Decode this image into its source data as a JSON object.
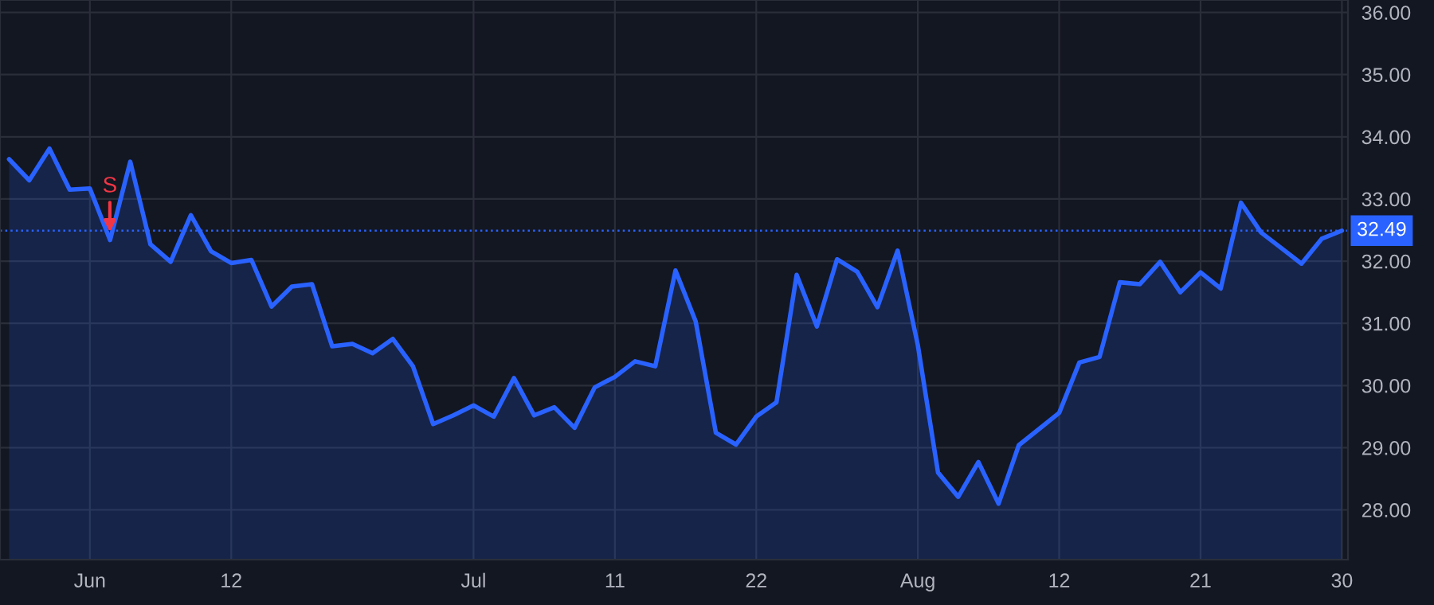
{
  "chart_data": {
    "type": "area",
    "categories": [
      null,
      null,
      null,
      null,
      "Jun",
      null,
      null,
      null,
      null,
      null,
      null,
      "12",
      null,
      null,
      null,
      null,
      null,
      null,
      null,
      null,
      null,
      null,
      null,
      "Jul",
      null,
      null,
      null,
      null,
      null,
      null,
      "11",
      null,
      null,
      null,
      null,
      null,
      null,
      "22",
      null,
      null,
      null,
      null,
      null,
      null,
      null,
      "Aug",
      null,
      null,
      null,
      null,
      null,
      null,
      "12",
      null,
      null,
      null,
      null,
      null,
      null,
      "21",
      null,
      null,
      null,
      null,
      null,
      null,
      "30"
    ],
    "series": [
      {
        "color": "#2962ff",
        "values": [
          33.64,
          33.3,
          33.81,
          33.15,
          33.17,
          32.34,
          33.6,
          32.27,
          31.99,
          32.74,
          32.16,
          31.97,
          32.02,
          31.27,
          31.59,
          31.63,
          30.63,
          30.67,
          30.52,
          30.75,
          30.31,
          29.38,
          29.52,
          29.68,
          29.5,
          30.12,
          29.52,
          29.65,
          29.32,
          29.97,
          30.14,
          30.39,
          30.31,
          31.85,
          31.03,
          29.24,
          29.05,
          29.5,
          29.73,
          31.78,
          30.95,
          32.03,
          31.83,
          31.26,
          32.17,
          30.65,
          28.6,
          28.21,
          28.77,
          28.1,
          29.04,
          29.3,
          29.56,
          30.37,
          30.46,
          31.66,
          31.63,
          31.99,
          31.5,
          31.82,
          31.56,
          32.94,
          32.46,
          32.21,
          31.96,
          32.36,
          32.49
        ]
      }
    ],
    "ylim": [
      27.2,
      36.2
    ],
    "yticks": [
      {
        "value": 28,
        "label": "28.00"
      },
      {
        "value": 29,
        "label": "29.00"
      },
      {
        "value": 30,
        "label": "30.00"
      },
      {
        "value": 31,
        "label": "31.00"
      },
      {
        "value": 32,
        "label": "32.00"
      },
      {
        "value": 33,
        "label": "33.00"
      },
      {
        "value": 34,
        "label": "34.00"
      },
      {
        "value": 35,
        "label": "35.00"
      },
      {
        "value": 36,
        "label": "36.00"
      }
    ],
    "ref_lines": [
      {
        "axis": "y",
        "value": 32.49,
        "label": "32.49",
        "color": "#2962ff",
        "line_style": "dotted"
      }
    ],
    "annotations": [
      "S"
    ],
    "grid": true,
    "line_style": "solid"
  }
}
